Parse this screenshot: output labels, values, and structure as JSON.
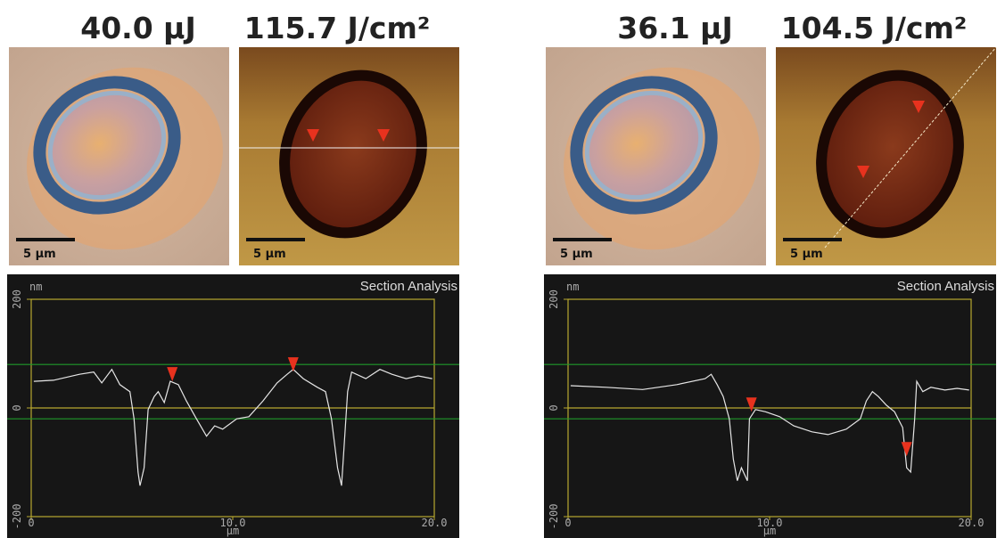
{
  "images": [
    {
      "energy": "40.0 µJ",
      "fluence": "115.7 J/cm²",
      "scale_bars": [
        "5 µm",
        "5 µm"
      ]
    },
    {
      "energy": "36.1 µJ",
      "fluence": "104.5 J/cm²",
      "scale_bars": [
        "5 µm",
        "5 µm"
      ]
    }
  ],
  "chart_data": [
    {
      "type": "line",
      "title": "Section Analysis",
      "y_label": "nm",
      "x_label": "µm",
      "xlim": [
        0,
        20
      ],
      "xticks": [
        0,
        {
          "value": 10,
          "label": "10.0"
        },
        {
          "value": 20,
          "label": "20.0"
        }
      ],
      "ylim": [
        -200,
        200
      ],
      "yticks": [
        200,
        0,
        -200
      ],
      "cursor_levels": [
        80,
        -20
      ],
      "profile": {
        "color": "#e6e6e6",
        "x": [
          0.13,
          1.1,
          2.4,
          3.1,
          3.5,
          4.0,
          4.4,
          4.9,
          5.1,
          5.3,
          5.4,
          5.6,
          5.8,
          6.1,
          6.3,
          6.6,
          6.9,
          7.3,
          7.7,
          8.2,
          8.7,
          9.1,
          9.5,
          10.2,
          10.8,
          11.5,
          12.2,
          12.7,
          13.0,
          13.5,
          14.2,
          14.6,
          14.9,
          15.2,
          15.4,
          15.5,
          15.7,
          15.9,
          16.6,
          17.3,
          17.9,
          18.6,
          19.2,
          19.9
        ],
        "values": [
          49,
          51,
          62,
          66,
          46,
          71,
          43,
          30,
          -20,
          -118,
          -143,
          -110,
          -3,
          21,
          30,
          10,
          49,
          43,
          13,
          -20,
          -52,
          -33,
          -39,
          -20,
          -16,
          13,
          46,
          62,
          71,
          54,
          38,
          30,
          -20,
          -110,
          -143,
          -85,
          30,
          66,
          54,
          71,
          62,
          54,
          59,
          54
        ]
      },
      "markers": {
        "color": "#e8321e",
        "x": [
          7.0,
          13.0
        ],
        "values": [
          49,
          67
        ]
      }
    },
    {
      "type": "line",
      "title": "Section Analysis",
      "y_label": "nm",
      "x_label": "µm",
      "xlim": [
        0,
        20
      ],
      "xticks": [
        0,
        {
          "value": 10,
          "label": "10.0"
        },
        {
          "value": 20,
          "label": "20.0"
        }
      ],
      "ylim": [
        -200,
        200
      ],
      "yticks": [
        200,
        0,
        -200
      ],
      "cursor_levels": [
        80,
        -20
      ],
      "profile": {
        "color": "#e6e6e6",
        "x": [
          0.13,
          1.9,
          3.7,
          5.4,
          6.8,
          7.1,
          7.4,
          7.7,
          8.0,
          8.2,
          8.4,
          8.6,
          8.9,
          9.0,
          9.3,
          9.8,
          10.5,
          11.2,
          12.1,
          12.9,
          13.8,
          14.5,
          14.8,
          15.1,
          15.4,
          15.8,
          16.2,
          16.6,
          16.8,
          17.0,
          17.2,
          17.3,
          17.6,
          18.0,
          18.7,
          19.3,
          19.9
        ],
        "values": [
          41,
          38,
          34,
          43,
          54,
          62,
          43,
          21,
          -20,
          -94,
          -134,
          -110,
          -134,
          -20,
          -3,
          -7,
          -16,
          -33,
          -44,
          -49,
          -39,
          -20,
          13,
          30,
          21,
          5,
          -7,
          -36,
          -110,
          -118,
          -20,
          49,
          30,
          38,
          33,
          36,
          33
        ]
      },
      "markers": {
        "color": "#e8321e",
        "x": [
          9.1,
          16.8
        ],
        "values": [
          -7,
          -89
        ]
      }
    }
  ]
}
